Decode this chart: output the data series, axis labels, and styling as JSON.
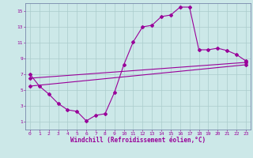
{
  "xlabel": "Windchill (Refroidissement éolien,°C)",
  "bg_color": "#cce8e8",
  "line_color": "#990099",
  "grid_color": "#aacccc",
  "spine_color": "#7788aa",
  "main_line": {
    "x": [
      0,
      1,
      2,
      3,
      4,
      5,
      6,
      7,
      8,
      9,
      10,
      11,
      12,
      13,
      14,
      15,
      16,
      17,
      18,
      19,
      20,
      21,
      22,
      23
    ],
    "y": [
      7.0,
      5.5,
      4.5,
      3.3,
      2.5,
      2.3,
      1.1,
      1.8,
      2.0,
      4.7,
      8.2,
      11.1,
      13.0,
      13.2,
      14.3,
      14.5,
      15.5,
      15.5,
      10.1,
      10.1,
      10.3,
      10.0,
      9.5,
      8.7
    ]
  },
  "upper_line": {
    "x": [
      0,
      23
    ],
    "y": [
      6.5,
      8.5
    ]
  },
  "lower_line": {
    "x": [
      0,
      23
    ],
    "y": [
      5.5,
      8.2
    ]
  },
  "xlim": [
    -0.5,
    23.5
  ],
  "ylim": [
    0,
    16
  ],
  "xticks": [
    0,
    1,
    2,
    3,
    4,
    5,
    6,
    7,
    8,
    9,
    10,
    11,
    12,
    13,
    14,
    15,
    16,
    17,
    18,
    19,
    20,
    21,
    22,
    23
  ],
  "yticks": [
    1,
    3,
    5,
    7,
    9,
    11,
    13,
    15
  ],
  "tick_fontsize": 4.5,
  "xlabel_fontsize": 5.5
}
